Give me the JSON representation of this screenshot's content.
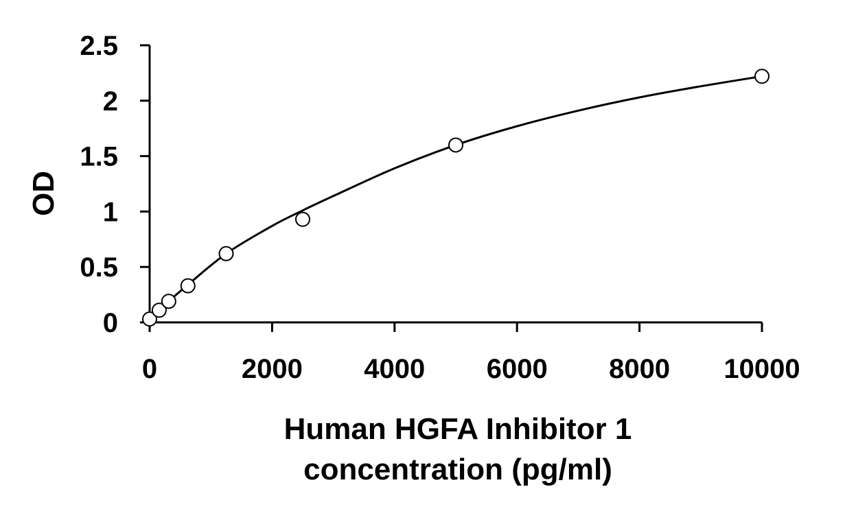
{
  "chart_data": {
    "type": "scatter",
    "title": "",
    "xlabel_lines": [
      "Human HGFA Inhibitor 1",
      "concentration (pg/ml)"
    ],
    "ylabel": "OD",
    "xlim": [
      0,
      10000
    ],
    "ylim": [
      0,
      2.5
    ],
    "xticks": [
      0,
      2000,
      4000,
      6000,
      8000,
      10000
    ],
    "xtick_labels": [
      "0",
      "2000",
      "4000",
      "6000",
      "8000",
      "10000"
    ],
    "yticks": [
      0,
      0.5,
      1,
      1.5,
      2,
      2.5
    ],
    "ytick_labels": [
      "0",
      "0.5",
      "1",
      "1.5",
      "2",
      "2.5"
    ],
    "grid": false,
    "legend": "none",
    "series": [
      {
        "marker": "open-circle",
        "x": [
          0,
          156,
          312,
          625,
          1250,
          2500,
          5000,
          10000
        ],
        "y": [
          0.03,
          0.11,
          0.19,
          0.33,
          0.62,
          0.93,
          1.6,
          2.22
        ]
      }
    ],
    "fit_curve": {
      "style": "smooth-line",
      "x": [
        0,
        156,
        312,
        625,
        1250,
        2000,
        2500,
        3000,
        4000,
        5000,
        6000,
        7000,
        8000,
        9000,
        10000
      ],
      "y": [
        0.03,
        0.11,
        0.19,
        0.34,
        0.62,
        0.87,
        1.01,
        1.14,
        1.39,
        1.6,
        1.77,
        1.91,
        2.03,
        2.13,
        2.22
      ]
    },
    "colors": {
      "axis": "#000000",
      "marker_stroke": "#000000",
      "marker_fill": "#ffffff",
      "curve": "#000000"
    }
  }
}
